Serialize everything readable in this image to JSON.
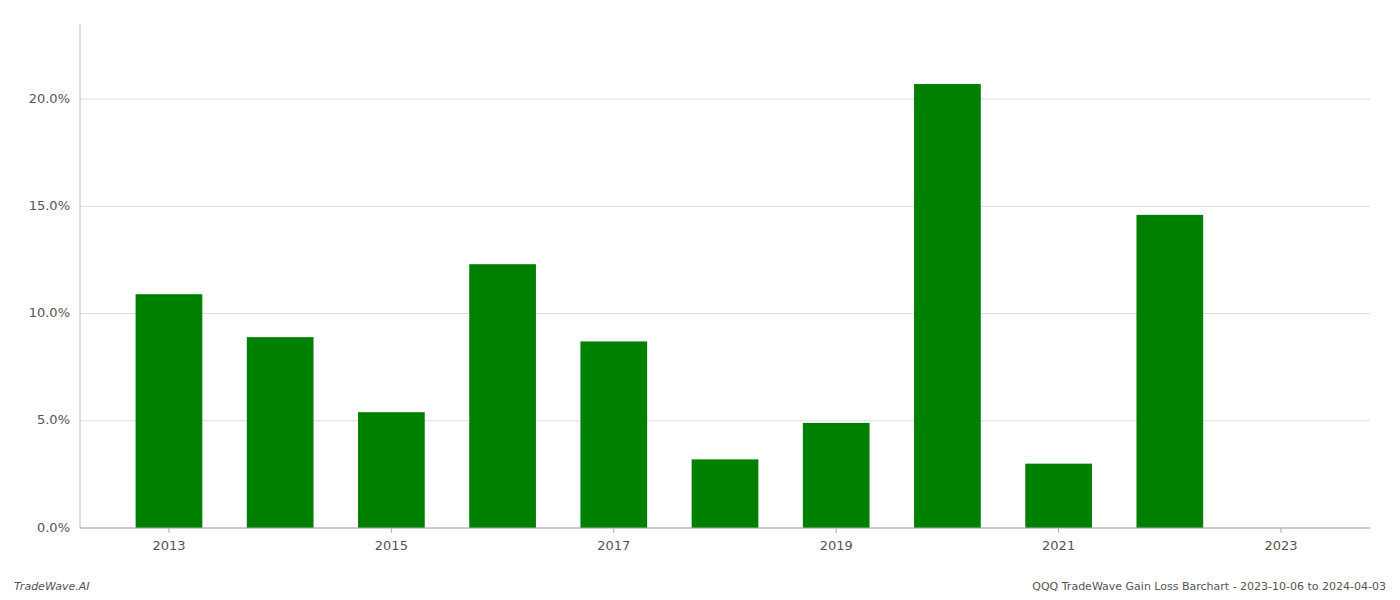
{
  "chart_data": {
    "type": "bar",
    "x": [
      2013,
      2014,
      2015,
      2016,
      2017,
      2018,
      2019,
      2020,
      2021,
      2022,
      2023
    ],
    "values": [
      0.109,
      0.089,
      0.054,
      0.123,
      0.087,
      0.032,
      0.049,
      0.207,
      0.03,
      0.146,
      0.0
    ],
    "color": "#008000",
    "xlim": [
      2012.2,
      2023.8
    ],
    "xticks": [
      2013,
      2015,
      2017,
      2019,
      2021,
      2023
    ],
    "ylim": [
      0,
      0.235
    ],
    "yticks": [
      {
        "value": 0.0,
        "label": "0.0%"
      },
      {
        "value": 0.05,
        "label": "5.0%"
      },
      {
        "value": 0.1,
        "label": "10.0%"
      },
      {
        "value": 0.15,
        "label": "15.0%"
      },
      {
        "value": 0.2,
        "label": "20.0%"
      }
    ],
    "grid": true,
    "annotations": [
      "TradeWave.AI",
      "QQQ TradeWave Gain Loss Barchart - 2023-10-06 to 2024-04-03"
    ]
  }
}
